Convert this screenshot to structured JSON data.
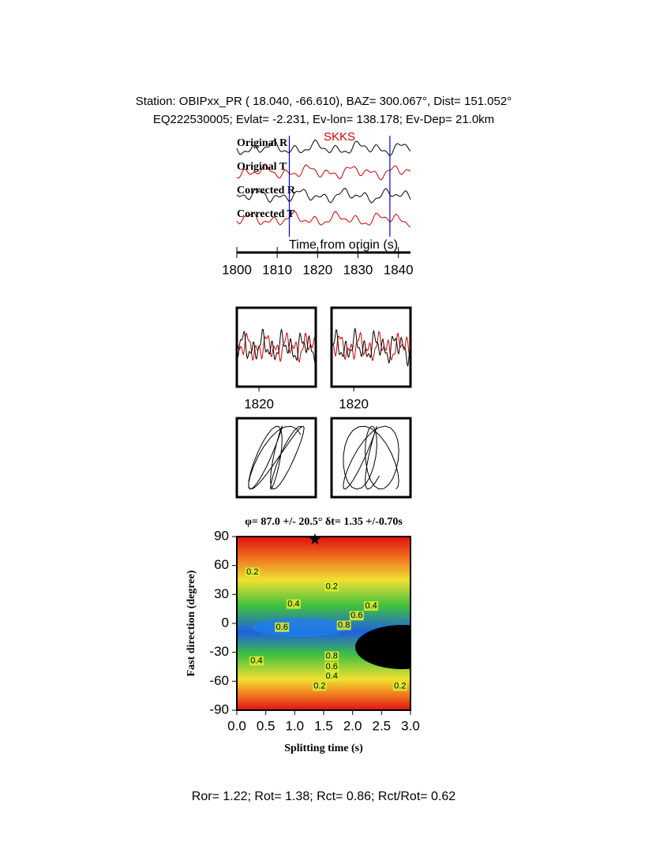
{
  "header": {
    "line1": "Station: OBIPxx_PR (  18.040,  -66.610), BAZ=  300.067°, Dist=  151.052°",
    "line2": "EQ222530005; Evlat=  -2.231, Ev-lon= 138.178; Ev-Dep= 21.0km"
  },
  "chart_data": [
    {
      "type": "waveform",
      "traces": [
        "Original R",
        "Original T",
        "Corrected R",
        "Corrected T"
      ],
      "trace_colors": [
        "#000000",
        "#cc0000",
        "#000000",
        "#cc0000"
      ],
      "phase": "SKKS",
      "xlabel": "Time from origin (s)",
      "xlim": [
        1800,
        1843
      ],
      "xticks": [
        1800,
        1810,
        1820,
        1830,
        1840
      ],
      "window": [
        1813,
        1837.9
      ]
    },
    {
      "type": "window-panels",
      "xlim": [
        1813,
        1837.9
      ],
      "xticks": [
        1820
      ]
    },
    {
      "type": "contour",
      "title": "φ= 87.0 +/- 20.5° δt= 1.35 +/-0.70s",
      "xlabel": "Splitting time (s)",
      "ylabel": "Fast direction (degree)",
      "xlim": [
        0,
        3
      ],
      "ylim": [
        -90,
        90
      ],
      "xticks": [
        {
          "value": 0,
          "label": "0.0"
        },
        0.5,
        {
          "value": 1,
          "label": "1.0"
        },
        1.5,
        {
          "value": 2,
          "label": "2.0"
        },
        2.5,
        {
          "value": 3,
          "label": "3.0"
        }
      ],
      "yticks": [
        90,
        60,
        30,
        0,
        -30,
        -60,
        -90
      ],
      "best": {
        "x": 1.35,
        "y": 87
      },
      "contour_labels": {
        "x": [
          0.27,
          1.64,
          0.98,
          2.32,
          2.07,
          0.78,
          1.85,
          0.34,
          1.64,
          1.64,
          1.64,
          1.43,
          2.82
        ],
        "y": [
          53,
          38,
          20,
          18,
          8,
          -4,
          -2,
          -39,
          -34,
          -45,
          -55,
          -65,
          -65
        ],
        "values": [
          0.2,
          0.2,
          0.4,
          0.4,
          0.6,
          0.6,
          0.8,
          0.4,
          0.8,
          0.6,
          0.4,
          0.2,
          0.2
        ]
      }
    }
  ],
  "footer": "Ror= 1.22; Rot= 1.38; Rct= 0.86; Rct/Rot= 0.62"
}
